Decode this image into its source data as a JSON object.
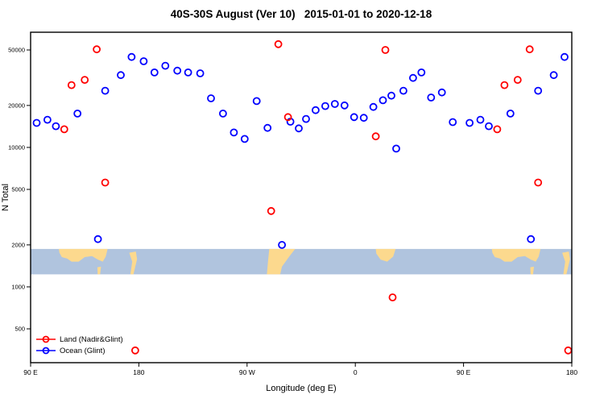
{
  "chart_data": {
    "type": "scatter",
    "title": "40S-30S August (Ver 10)   2015-01-01 to 2020-12-18",
    "xlabel": "Longitude (deg E)",
    "ylabel": "N Total",
    "x_axis": {
      "range": [
        90,
        540
      ],
      "ticks": [
        {
          "value": 90,
          "label": "90 E"
        },
        {
          "value": 180,
          "label": "180"
        },
        {
          "value": 270,
          "label": "90 W"
        },
        {
          "value": 360,
          "label": "0"
        },
        {
          "value": 450,
          "label": "90 E"
        },
        {
          "value": 540,
          "label": "180"
        }
      ]
    },
    "y_axis": {
      "scale": "log",
      "range": [
        286,
        67000
      ],
      "ticks": [
        {
          "value": 500,
          "label": "500"
        },
        {
          "value": 1000,
          "label": "1000"
        },
        {
          "value": 2000,
          "label": "2000"
        },
        {
          "value": 5000,
          "label": "5000"
        },
        {
          "value": 10000,
          "label": "10000"
        },
        {
          "value": 20000,
          "label": "20000"
        },
        {
          "value": 50000,
          "label": "50000"
        }
      ]
    },
    "legend": {
      "position": "bottom-left"
    },
    "series": [
      {
        "name": "Land (Nadir&Glint)",
        "color": "#ff0000",
        "marker": "open-circle",
        "points": [
          [
            118,
            13500
          ],
          [
            124,
            28000
          ],
          [
            135,
            30500
          ],
          [
            145,
            50500
          ],
          [
            152,
            5600
          ],
          [
            177,
            350
          ],
          [
            290,
            3500
          ],
          [
            296,
            55000
          ],
          [
            304,
            16500
          ],
          [
            377,
            12000
          ],
          [
            385,
            50000
          ],
          [
            391,
            840
          ],
          [
            478,
            13500
          ],
          [
            484,
            28000
          ],
          [
            495,
            30500
          ],
          [
            505,
            50500
          ],
          [
            512,
            5600
          ],
          [
            537,
            350
          ]
        ]
      },
      {
        "name": "Ocean (Glint)",
        "color": "#0000ff",
        "marker": "open-circle",
        "points": [
          [
            95,
            15000
          ],
          [
            104,
            15800
          ],
          [
            111,
            14200
          ],
          [
            129,
            17500
          ],
          [
            146,
            2200
          ],
          [
            152,
            25500
          ],
          [
            165,
            33000
          ],
          [
            174,
            44500
          ],
          [
            184,
            41500
          ],
          [
            193,
            34500
          ],
          [
            202,
            38500
          ],
          [
            212,
            35500
          ],
          [
            221,
            34500
          ],
          [
            231,
            34000
          ],
          [
            240,
            22500
          ],
          [
            250,
            17500
          ],
          [
            259,
            12800
          ],
          [
            268,
            11500
          ],
          [
            278,
            21500
          ],
          [
            287,
            13800
          ],
          [
            299,
            2000
          ],
          [
            306,
            15300
          ],
          [
            313,
            13700
          ],
          [
            319,
            16000
          ],
          [
            327,
            18500
          ],
          [
            335,
            19800
          ],
          [
            343,
            20500
          ],
          [
            351,
            20000
          ],
          [
            359,
            16500
          ],
          [
            367,
            16300
          ],
          [
            375,
            19500
          ],
          [
            383,
            21800
          ],
          [
            390,
            23500
          ],
          [
            394,
            9800
          ],
          [
            400,
            25500
          ],
          [
            408,
            31500
          ],
          [
            415,
            34500
          ],
          [
            423,
            22800
          ],
          [
            432,
            24800
          ],
          [
            441,
            15200
          ],
          [
            455,
            15000
          ],
          [
            464,
            15800
          ],
          [
            471,
            14200
          ],
          [
            489,
            17500
          ],
          [
            506,
            2200
          ],
          [
            512,
            25500
          ],
          [
            525,
            33000
          ],
          [
            534,
            44500
          ]
        ]
      }
    ],
    "map_band": {
      "description": "world-map strip of the 40S-30S latitude band",
      "value_range": [
        1230,
        1870
      ],
      "ocean_color": "#b0c4de",
      "land_color": "#fcd98e",
      "land_polygons": [
        {
          "name": "australia",
          "points": [
            [
              113.5,
              0
            ],
            [
              154,
              0
            ],
            [
              152.5,
              0.3
            ],
            [
              150,
              0.5
            ],
            [
              146,
              0.42
            ],
            [
              141,
              0.28
            ],
            [
              135,
              0.32
            ],
            [
              130,
              0.5
            ],
            [
              124,
              0.5
            ],
            [
              120.5,
              0.38
            ],
            [
              116,
              0.32
            ],
            [
              114,
              0.15
            ]
          ]
        },
        {
          "name": "tasmania",
          "points": [
            [
              145.5,
              0.72
            ],
            [
              148.5,
              0.7
            ],
            [
              147.8,
              1
            ],
            [
              145.8,
              1
            ]
          ]
        },
        {
          "name": "new-zealand",
          "points": [
            [
              172,
              0.15
            ],
            [
              177.5,
              0.1
            ],
            [
              178.5,
              0.4
            ],
            [
              175.5,
              1
            ],
            [
              173,
              1
            ],
            [
              174.5,
              0.5
            ]
          ]
        },
        {
          "name": "south-america",
          "points": [
            [
              288.5,
              0
            ],
            [
              310,
              0
            ],
            [
              305,
              0.3
            ],
            [
              299,
              0.7
            ],
            [
              297.5,
              1
            ],
            [
              286.5,
              1
            ],
            [
              287.5,
              0.45
            ]
          ]
        },
        {
          "name": "africa",
          "points": [
            [
              377,
              0
            ],
            [
              393.5,
              0
            ],
            [
              391.5,
              0.3
            ],
            [
              386.5,
              0.5
            ],
            [
              381,
              0.42
            ],
            [
              377.5,
              0.18
            ]
          ]
        },
        {
          "name": "australia-repeat",
          "points": [
            [
              473.5,
              0
            ],
            [
              514,
              0
            ],
            [
              512.5,
              0.3
            ],
            [
              510,
              0.5
            ],
            [
              506,
              0.42
            ],
            [
              501,
              0.28
            ],
            [
              495,
              0.32
            ],
            [
              490,
              0.5
            ],
            [
              484,
              0.5
            ],
            [
              480.5,
              0.38
            ],
            [
              476,
              0.32
            ],
            [
              474,
              0.15
            ]
          ]
        },
        {
          "name": "tasmania-repeat",
          "points": [
            [
              505.5,
              0.72
            ],
            [
              508.5,
              0.7
            ],
            [
              507.8,
              1
            ],
            [
              505.8,
              1
            ]
          ]
        },
        {
          "name": "new-zealand-repeat",
          "points": [
            [
              532,
              0.15
            ],
            [
              537.5,
              0.1
            ],
            [
              538.5,
              0.4
            ],
            [
              535.5,
              1
            ],
            [
              533,
              1
            ],
            [
              534.5,
              0.5
            ]
          ]
        }
      ]
    }
  }
}
